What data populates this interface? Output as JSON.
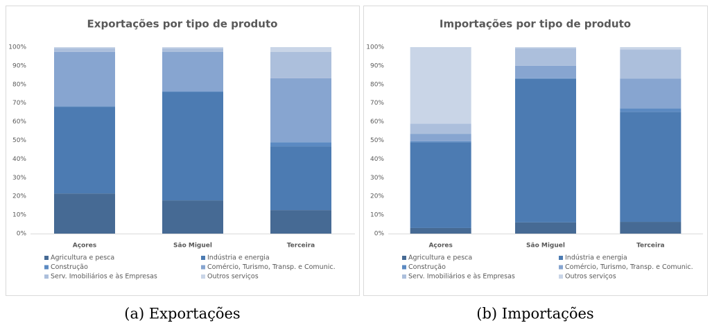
{
  "chart_data": [
    {
      "type": "stacked_bar",
      "title": "Exportações por tipo de produto",
      "caption": "(a) Exportações",
      "categories": [
        "Açores",
        "São Miguel",
        "Terceira"
      ],
      "series": [
        {
          "name": "Agricultura e pesca",
          "color": "#466a94",
          "values": [
            21.5,
            17.8,
            12.6
          ]
        },
        {
          "name": "Indústria e energia",
          "color": "#4c7bb2",
          "values": [
            46.5,
            58.2,
            34.2
          ]
        },
        {
          "name": "Construção",
          "color": "#5b8ac2",
          "values": [
            0.3,
            0.2,
            2.2
          ]
        },
        {
          "name": "Comércio, Turismo, Transp. e Comunic.",
          "color": "#87a5d0",
          "values": [
            29.2,
            21.2,
            34.3
          ]
        },
        {
          "name": "Serv. Imobiliários e às Empresas",
          "color": "#acbfdc",
          "values": [
            2.0,
            2.0,
            14.1
          ]
        },
        {
          "name": "Outros serviços",
          "color": "#c9d5e7",
          "values": [
            0.5,
            0.6,
            2.6
          ]
        }
      ],
      "ylim": [
        0,
        100
      ],
      "yticks": [
        {
          "value": 0,
          "label": "0%"
        },
        {
          "value": 10,
          "label": "10%"
        },
        {
          "value": 20,
          "label": "20%"
        },
        {
          "value": 30,
          "label": "30%"
        },
        {
          "value": 40,
          "label": "40%"
        },
        {
          "value": 50,
          "label": "50%"
        },
        {
          "value": 60,
          "label": "60%"
        },
        {
          "value": 70,
          "label": "70%"
        },
        {
          "value": 80,
          "label": "80%"
        },
        {
          "value": 90,
          "label": "90%"
        },
        {
          "value": 100,
          "label": "100%"
        }
      ],
      "grid": false,
      "legend": "bottom"
    },
    {
      "type": "stacked_bar",
      "title": "Importações por tipo de produto",
      "caption": "(b) Importações",
      "categories": [
        "Açores",
        "São Miguel",
        "Terceira"
      ],
      "series": [
        {
          "name": "Agricultura e pesca",
          "color": "#466a94",
          "values": [
            3.0,
            6.0,
            6.3
          ]
        },
        {
          "name": "Indústria e energia",
          "color": "#4c7bb2",
          "values": [
            46.0,
            77.0,
            59.0
          ]
        },
        {
          "name": "Construção",
          "color": "#5b8ac2",
          "values": [
            0.5,
            0.3,
            1.9
          ]
        },
        {
          "name": "Comércio, Turismo, Transp. e Comunic.",
          "color": "#87a5d0",
          "values": [
            4.0,
            6.7,
            16.0
          ]
        },
        {
          "name": "Serv. Imobiliários e às Empresas",
          "color": "#acbfdc",
          "values": [
            5.5,
            9.5,
            15.6
          ]
        },
        {
          "name": "Outros serviços",
          "color": "#c9d5e7",
          "values": [
            41.0,
            0.5,
            1.2
          ]
        }
      ],
      "ylim": [
        0,
        100
      ],
      "yticks": [
        {
          "value": 0,
          "label": "0%"
        },
        {
          "value": 10,
          "label": "10%"
        },
        {
          "value": 20,
          "label": "20%"
        },
        {
          "value": 30,
          "label": "30%"
        },
        {
          "value": 40,
          "label": "40%"
        },
        {
          "value": 50,
          "label": "50%"
        },
        {
          "value": 60,
          "label": "60%"
        },
        {
          "value": 70,
          "label": "70%"
        },
        {
          "value": 80,
          "label": "80%"
        },
        {
          "value": 90,
          "label": "90%"
        },
        {
          "value": 100,
          "label": "100%"
        }
      ],
      "grid": false,
      "legend": "bottom"
    }
  ]
}
